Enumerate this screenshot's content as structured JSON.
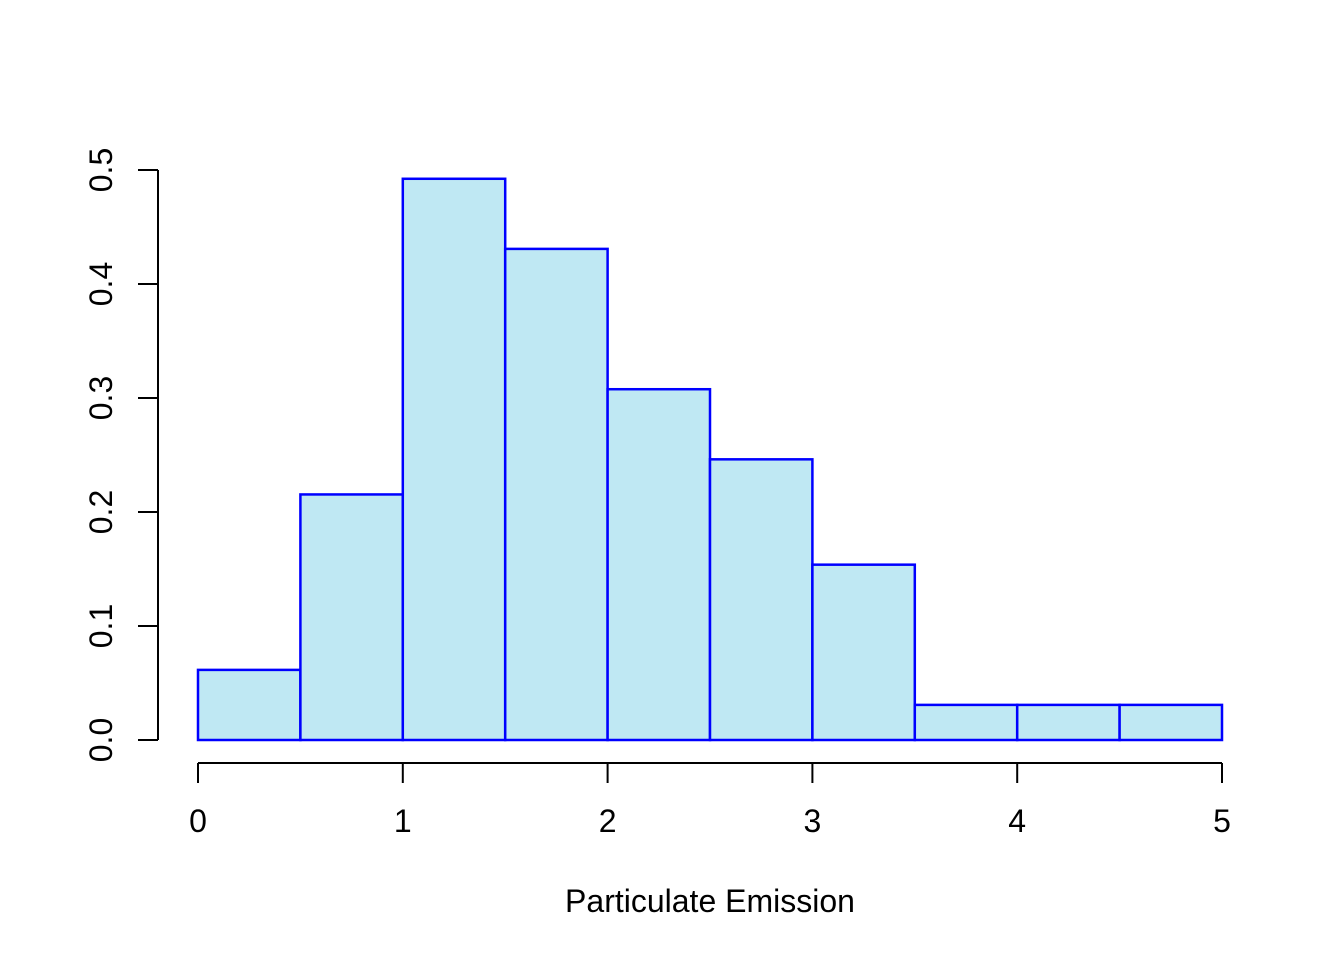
{
  "chart_data": {
    "type": "bar",
    "subtype": "histogram",
    "title": "",
    "xlabel": "Particulate Emission",
    "ylabel": "",
    "bin_edges": [
      0,
      0.5,
      1,
      1.5,
      2,
      2.5,
      3,
      3.5,
      4,
      4.5,
      5
    ],
    "densities": [
      0.0615,
      0.2154,
      0.4923,
      0.4308,
      0.3077,
      0.2462,
      0.1538,
      0.0308,
      0.0308,
      0.0308
    ],
    "xlim": [
      0,
      5
    ],
    "ylim": [
      0,
      0.5
    ],
    "x_tick_values": [
      0,
      1,
      2,
      3,
      4,
      5
    ],
    "x_tick_labels": [
      "0",
      "1",
      "2",
      "3",
      "4",
      "5"
    ],
    "y_tick_values": [
      0.0,
      0.1,
      0.2,
      0.3,
      0.4,
      0.5
    ],
    "y_tick_labels": [
      "0.0",
      "0.1",
      "0.2",
      "0.3",
      "0.4",
      "0.5"
    ],
    "grid": "off",
    "legend": "none",
    "colors": {
      "bar_fill": "#BFE8F3",
      "bar_border": "#0000FF",
      "axis": "#000000",
      "background": "#FFFFFF",
      "text": "#000000"
    }
  }
}
